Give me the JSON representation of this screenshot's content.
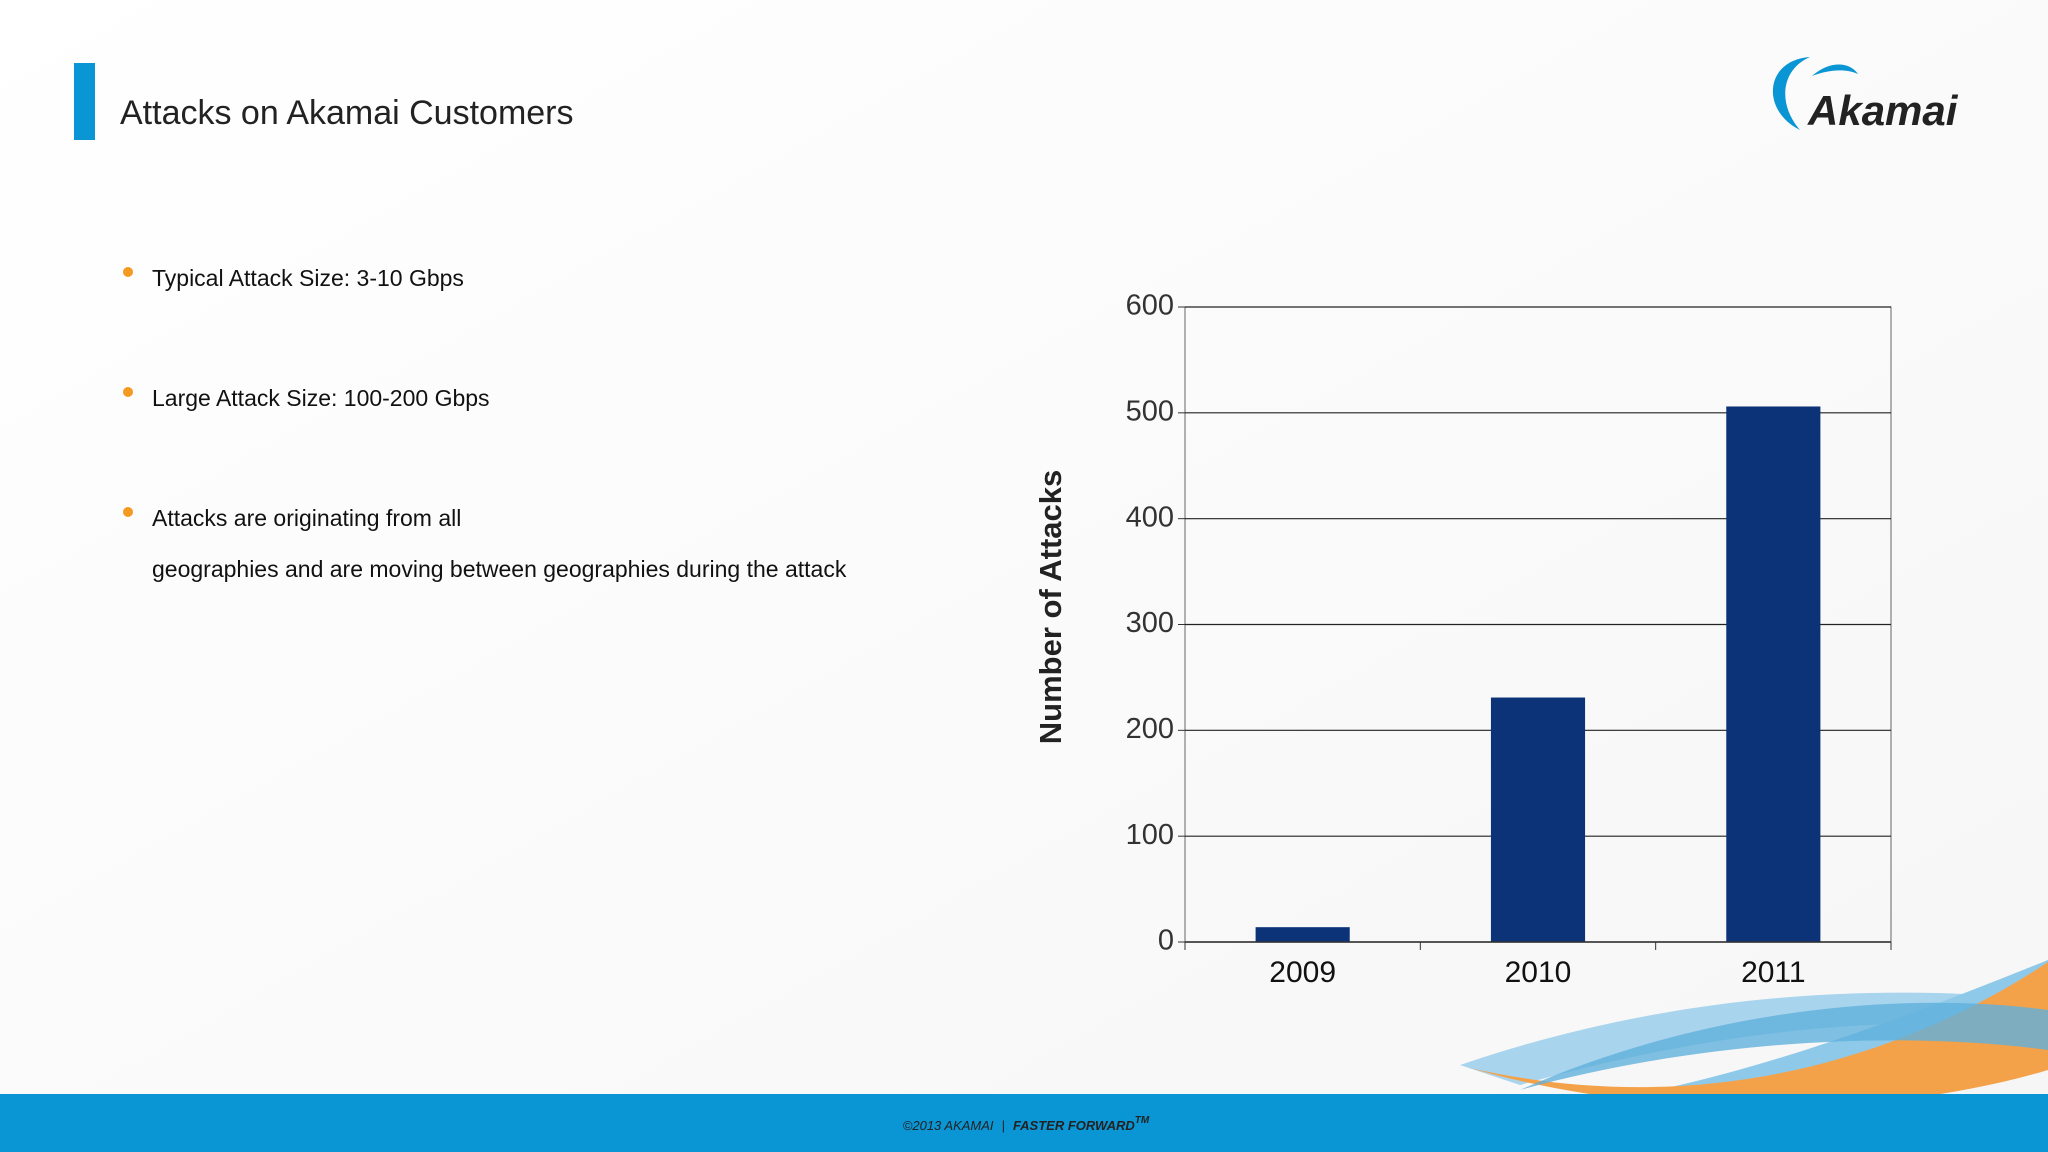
{
  "slide": {
    "title": "Attacks on Akamai Customers",
    "logo": "Akamai",
    "bullets": [
      [
        "Typical Attack Size: 3-10 Gbps"
      ],
      [
        "Large Attack Size: 100-200 Gbps"
      ],
      [
        "Attacks are originating from all",
        "geographies and are moving between geographies during the attack"
      ]
    ]
  },
  "footer": {
    "copyright": "©2013 AKAMAI",
    "separator": "|",
    "tagline": "FASTER FORWARD",
    "tm": "TM"
  },
  "chart_data": {
    "type": "bar",
    "y_label": "Number of Attacks",
    "categories": [
      "2009",
      "2010",
      "2011"
    ],
    "values": [
      14,
      231,
      506
    ],
    "color": "#0c3278",
    "ylim": [
      0,
      600
    ],
    "yticks": [
      0,
      100,
      200,
      300,
      400,
      500,
      600
    ],
    "grid": true
  }
}
